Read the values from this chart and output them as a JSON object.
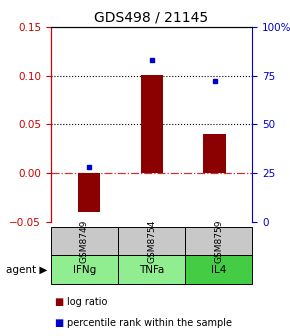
{
  "title": "GDS498 / 21145",
  "samples": [
    "GSM8749",
    "GSM8754",
    "GSM8759"
  ],
  "agents": [
    "IFNg",
    "TNFa",
    "IL4"
  ],
  "log_ratios": [
    -0.04,
    0.101,
    0.04
  ],
  "percentiles": [
    28,
    83,
    72
  ],
  "ylim_left": [
    -0.05,
    0.15
  ],
  "yticks_left": [
    -0.05,
    0.0,
    0.05,
    0.1,
    0.15
  ],
  "yticks_right": [
    0,
    25,
    50,
    75,
    100
  ],
  "bar_color": "#8B0000",
  "dot_color": "#0000CC",
  "zero_line_color": "#CC3333",
  "grid_color": "#000000",
  "sample_box_color": "#C8C8C8",
  "agent_box_color": "#90EE90",
  "agent_box_color_il4": "#44CC44",
  "title_fontsize": 10,
  "tick_fontsize": 7.5,
  "legend_fontsize": 7
}
